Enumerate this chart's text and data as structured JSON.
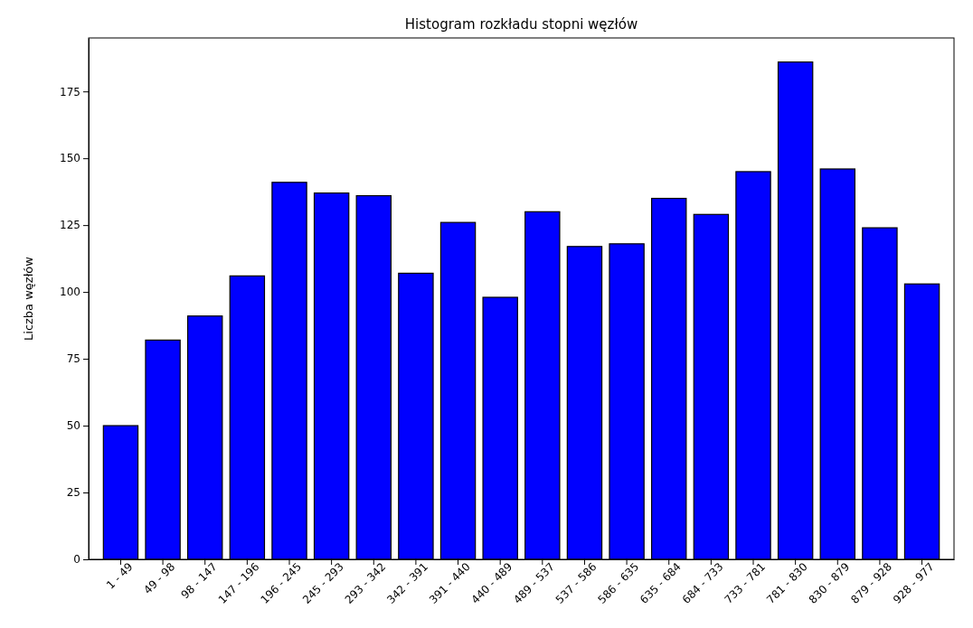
{
  "chart_data": {
    "type": "bar",
    "title": "Histogram rozkładu stopni węzłów",
    "ylabel": "Liczba węzłów",
    "categories": [
      "1 - 49",
      "49 - 98",
      "98 - 147",
      "147 - 196",
      "196 - 245",
      "245 - 293",
      "293 - 342",
      "342 - 391",
      "391 - 440",
      "440 - 489",
      "489 - 537",
      "537 - 586",
      "586 - 635",
      "635 - 684",
      "684 - 733",
      "733 - 781",
      "781 - 830",
      "830 - 879",
      "879 - 928",
      "928 - 977"
    ],
    "values": [
      50,
      82,
      91,
      106,
      141,
      137,
      136,
      107,
      126,
      98,
      130,
      117,
      118,
      135,
      129,
      145,
      186,
      146,
      124,
      103
    ],
    "color": "#0000ff",
    "ylim": [
      0,
      195
    ],
    "yticks": [
      0,
      25,
      50,
      75,
      100,
      125,
      150,
      175
    ],
    "grid": false
  }
}
